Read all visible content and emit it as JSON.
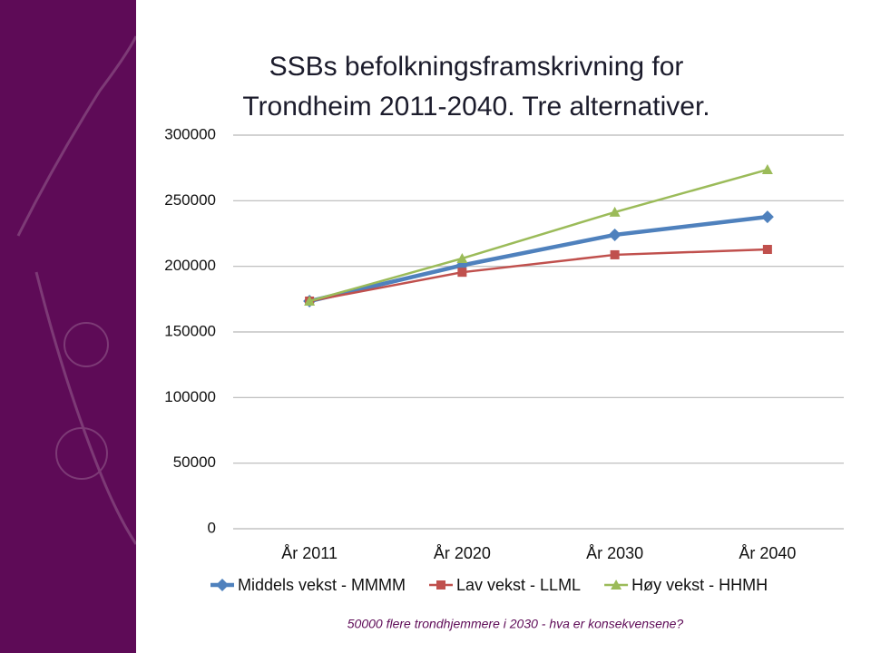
{
  "chart_data": {
    "type": "line",
    "title": "SSBs befolkningsframskrivning for Trondheim 2011-2040. Tre alternativer.",
    "categories": [
      "År 2011",
      "År 2020",
      "År 2030",
      "År 2040"
    ],
    "series": [
      {
        "name": "Middels vekst - MMMM",
        "color": "#4f81bd",
        "marker": "diamond",
        "values": [
          173500,
          200800,
          224000,
          237700
        ]
      },
      {
        "name": "Lav vekst - LLML",
        "color": "#c0504d",
        "marker": "square",
        "values": [
          173500,
          195500,
          208800,
          212900
        ]
      },
      {
        "name": "Høy vekst - HHMH",
        "color": "#9bbb59",
        "marker": "triangle",
        "values": [
          173500,
          206000,
          241300,
          273700
        ]
      }
    ],
    "ylim": [
      0,
      300000
    ],
    "yticks": [
      0,
      50000,
      100000,
      150000,
      200000,
      250000,
      300000
    ],
    "grid": true,
    "legend": "bottom",
    "footnote": "50000 flere trondhjemmere i 2030 - hva er konsekvensene?"
  }
}
